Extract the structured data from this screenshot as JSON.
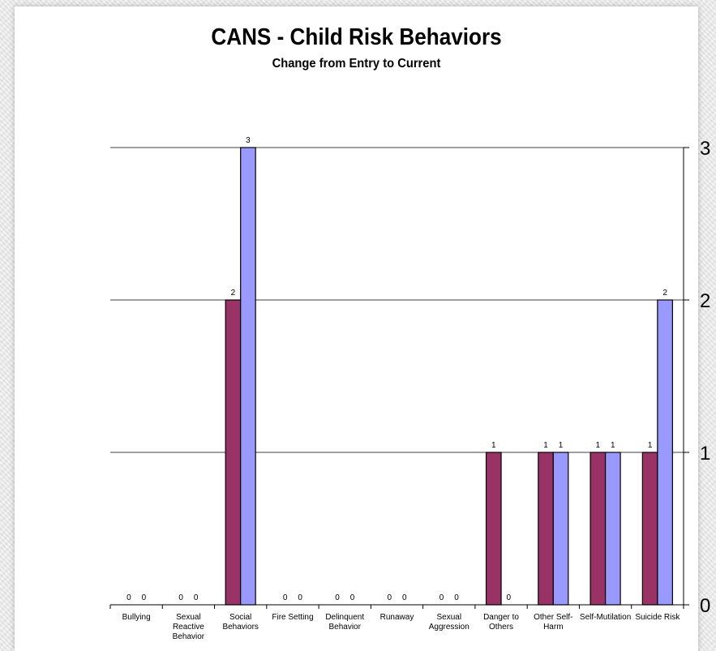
{
  "chart_data": {
    "type": "bar",
    "title": "CANS - Child Risk Behaviors",
    "subtitle": "Change from Entry to Current",
    "categories": [
      [
        "Bullying"
      ],
      [
        "Sexual",
        "Reactive",
        "Behavior"
      ],
      [
        "Social",
        "Behaviors"
      ],
      [
        "Fire Setting"
      ],
      [
        "Delinquent",
        "Behavior"
      ],
      [
        "Runaway"
      ],
      [
        "Sexual",
        "Aggression"
      ],
      [
        "Danger to",
        "Others"
      ],
      [
        "Other Self-",
        "Harm"
      ],
      [
        "Self-Mutilation"
      ],
      [
        "Suicide Risk"
      ]
    ],
    "series": [
      {
        "values": [
          0,
          0,
          2,
          0,
          0,
          0,
          0,
          1,
          1,
          1,
          1
        ]
      },
      {
        "values": [
          0,
          0,
          3,
          0,
          0,
          0,
          0,
          0,
          1,
          1,
          2
        ]
      }
    ],
    "ylim": [
      0,
      3
    ],
    "yticks": [
      0,
      1,
      2,
      3
    ],
    "y_axis_side": "right",
    "grid": true,
    "colors": {
      "series1": "#993366",
      "series2": "#9999ff"
    }
  }
}
